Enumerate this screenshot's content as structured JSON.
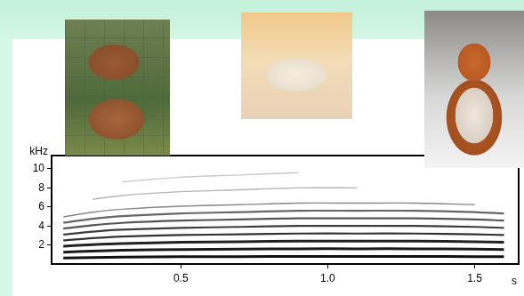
{
  "chart_data": {
    "type": "line",
    "x_label": "s",
    "y_label": "kHz",
    "x": [
      0.1,
      0.2,
      0.3,
      0.5,
      0.7,
      0.9,
      1.1,
      1.3,
      1.5,
      1.6
    ],
    "series": [
      {
        "color": "#111111",
        "values": [
          0.62,
          0.68,
          0.72,
          0.76,
          0.78,
          0.8,
          0.8,
          0.8,
          0.78,
          0.76
        ]
      },
      {
        "color": "#1a1a1a",
        "values": [
          1.24,
          1.36,
          1.44,
          1.52,
          1.56,
          1.6,
          1.6,
          1.6,
          1.56,
          1.52
        ]
      },
      {
        "color": "#222222",
        "values": [
          1.86,
          2.04,
          2.16,
          2.28,
          2.34,
          2.4,
          2.4,
          2.4,
          2.34,
          2.28
        ]
      },
      {
        "color": "#333333",
        "values": [
          2.48,
          2.72,
          2.88,
          3.04,
          3.12,
          3.2,
          3.2,
          3.2,
          3.12,
          3.04
        ]
      },
      {
        "color": "#3c3c3c",
        "values": [
          3.1,
          3.4,
          3.6,
          3.8,
          3.9,
          4.0,
          4.0,
          4.0,
          3.9,
          3.8
        ]
      },
      {
        "color": "#555555",
        "values": [
          3.72,
          4.08,
          4.32,
          4.56,
          4.68,
          4.8,
          4.8,
          4.8,
          4.68,
          4.56
        ]
      },
      {
        "color": "#666666",
        "values": [
          4.34,
          4.76,
          5.04,
          5.32,
          5.46,
          5.6,
          5.6,
          5.6,
          5.46,
          5.32
        ]
      },
      {
        "color": "#888888",
        "values": [
          4.96,
          5.44,
          5.76,
          6.08,
          6.24,
          6.4,
          6.4,
          6.4,
          6.24,
          null
        ]
      },
      {
        "color": "#b4b4b4",
        "values": [
          null,
          6.8,
          7.2,
          7.6,
          7.8,
          8.0,
          8.0,
          null,
          null,
          null
        ]
      },
      {
        "color": "#c8c8c8",
        "values": [
          null,
          null,
          8.64,
          9.12,
          9.36,
          9.6,
          null,
          null,
          null,
          null
        ]
      }
    ],
    "xlim": [
      0.06,
      1.65
    ],
    "ylim": [
      0,
      11.4
    ],
    "xticks": [
      0.5,
      {
        "value": 1,
        "label": "1.0"
      },
      1.5
    ],
    "yticks": [
      2,
      4,
      6,
      8,
      10
    ],
    "grid": false
  }
}
